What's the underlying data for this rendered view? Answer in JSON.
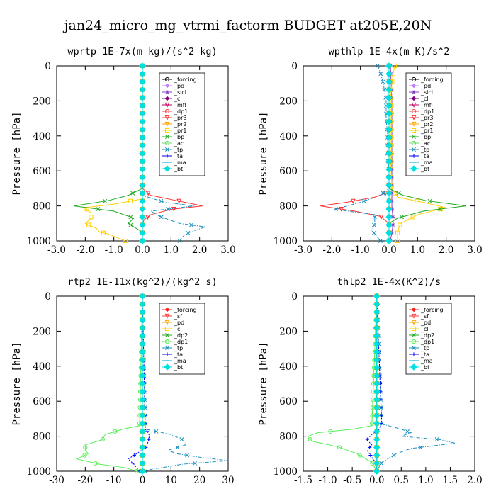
{
  "suptitle": "jan24_micro_mg_vtrmi_factorm  BUDGET at205E,20N",
  "chart_data": [
    {
      "type": "line",
      "title": "wprtp  1E-7x(m kg)/(s^2 kg)",
      "ylabel": "Pressure [hPa]",
      "xlim": [
        -3,
        3
      ],
      "ylim": [
        1000,
        0
      ],
      "xticks": [
        "-3.0",
        "-2.0",
        "-1.0",
        "0.0",
        "1.0",
        "2.0",
        "3.0"
      ],
      "yticks": [
        "0",
        "200",
        "400",
        "600",
        "800",
        "1000"
      ],
      "legend": "top-right",
      "series": [
        {
          "name": "_forcing",
          "color": "#000000",
          "marker": "circle",
          "pressure": [
            0,
            700,
            750,
            800,
            850,
            900,
            950,
            1000
          ],
          "values": [
            0,
            0,
            0,
            0,
            0,
            0,
            0,
            0
          ]
        },
        {
          "name": "_pd",
          "color": "#c080ff",
          "marker": "diamond",
          "pressure": [
            0,
            1000
          ],
          "values": [
            0,
            0
          ]
        },
        {
          "name": "_sicl",
          "color": "#8040c0",
          "marker": "star",
          "pressure": [
            0,
            1000
          ],
          "values": [
            0,
            0
          ]
        },
        {
          "name": "_cl",
          "color": "#800080",
          "marker": "diamond",
          "pressure": [
            0,
            1000
          ],
          "values": [
            0,
            0
          ]
        },
        {
          "name": "_mfl",
          "color": "#c00060",
          "marker": "triangle",
          "pressure": [
            0,
            1000
          ],
          "values": [
            0,
            0
          ]
        },
        {
          "name": "_dp1",
          "color": "#ff4040",
          "marker": "circle",
          "pressure": [
            0,
            1000
          ],
          "values": [
            0,
            0
          ]
        },
        {
          "name": "_pr3",
          "color": "#ff3030",
          "marker": "triangle",
          "pressure": [
            0,
            700,
            740,
            770,
            790,
            800,
            820,
            850,
            880,
            920,
            1000
          ],
          "values": [
            0,
            0,
            0.3,
            1.2,
            1.8,
            2.1,
            1.0,
            0.3,
            0.05,
            0,
            0
          ]
        },
        {
          "name": "_pr2",
          "color": "#ffa500",
          "marker": "triangle",
          "pressure": [
            0,
            1000
          ],
          "values": [
            0,
            0
          ]
        },
        {
          "name": "_pr1",
          "color": "#ffd000",
          "marker": "square",
          "pressure": [
            0,
            760,
            790,
            810,
            840,
            870,
            900,
            930,
            950,
            960,
            980,
            1000
          ],
          "values": [
            0,
            0,
            -1.0,
            -2.0,
            -1.8,
            -1.8,
            -2.0,
            -1.6,
            -1.5,
            -1.2,
            -0.9,
            -0.6
          ]
        },
        {
          "name": "_bp",
          "color": "#22aa22",
          "marker": "x",
          "pressure": [
            0,
            700,
            740,
            770,
            800,
            830,
            870,
            900,
            950,
            1000
          ],
          "values": [
            0,
            0,
            -0.5,
            -1.2,
            -2.4,
            -1.0,
            -0.3,
            -0.5,
            0,
            0
          ]
        },
        {
          "name": "_ac",
          "color": "#66dd66",
          "marker": "circle",
          "pressure": [
            0,
            1000
          ],
          "values": [
            0,
            0
          ]
        },
        {
          "name": "_tp",
          "color": "#1a8fc0",
          "marker": "x",
          "pressure": [
            0,
            740,
            780,
            800,
            830,
            860,
            900,
            920,
            960,
            1000
          ],
          "values": [
            0,
            0,
            0.8,
            1.8,
            0.3,
            0.6,
            1.3,
            2.2,
            1.5,
            1.3
          ]
        },
        {
          "name": "_ta",
          "color": "#0000ff",
          "marker": "plus",
          "pressure": [
            0,
            1000
          ],
          "values": [
            0,
            0
          ]
        },
        {
          "name": "_ma",
          "color": "#00aadd",
          "marker": "dash",
          "pressure": [
            0,
            1000
          ],
          "values": [
            0,
            0
          ]
        },
        {
          "name": "_bt",
          "color": "#00e0e0",
          "marker": "bigdiamond",
          "pressure": [
            0,
            1000
          ],
          "values": [
            0,
            0
          ]
        }
      ]
    },
    {
      "type": "line",
      "title": "wpthlp  1E-4x(m K)/s^2",
      "ylabel": "Pressure [hPa]",
      "xlim": [
        -3,
        3
      ],
      "ylim": [
        1000,
        0
      ],
      "xticks": [
        "-3.0",
        "-2.0",
        "-1.0",
        "0.0",
        "1.0",
        "2.0",
        "3.0"
      ],
      "yticks": [
        "0",
        "200",
        "400",
        "600",
        "800",
        "1000"
      ],
      "legend": "top-right",
      "series": [
        {
          "name": "_forcing",
          "color": "#000000",
          "marker": "circle",
          "pressure": [
            0,
            200,
            400,
            600,
            700,
            800,
            900,
            1000
          ],
          "values": [
            0,
            0,
            0,
            0,
            0,
            0,
            0,
            0
          ]
        },
        {
          "name": "_pd",
          "color": "#c080ff",
          "marker": "diamond",
          "pressure": [
            0,
            1000
          ],
          "values": [
            0,
            0
          ]
        },
        {
          "name": "_sicl",
          "color": "#8040c0",
          "marker": "star",
          "pressure": [
            0,
            200,
            700,
            800,
            900,
            950,
            1000
          ],
          "values": [
            0.05,
            0.1,
            0.1,
            0.1,
            0.15,
            0.1,
            0.05
          ]
        },
        {
          "name": "_cl",
          "color": "#800080",
          "marker": "diamond",
          "pressure": [
            0,
            1000
          ],
          "values": [
            0,
            0
          ]
        },
        {
          "name": "_mfl",
          "color": "#c00060",
          "marker": "triangle",
          "pressure": [
            0,
            1000
          ],
          "values": [
            0,
            0
          ]
        },
        {
          "name": "_dp1",
          "color": "#ff4040",
          "marker": "circle",
          "pressure": [
            0,
            1000
          ],
          "values": [
            0,
            0
          ]
        },
        {
          "name": "_pr3",
          "color": "#ff3030",
          "marker": "triangle",
          "pressure": [
            0,
            720,
            750,
            780,
            800,
            830,
            860,
            900,
            1000
          ],
          "values": [
            0,
            0,
            -0.5,
            -1.5,
            -2.4,
            -1.2,
            -0.3,
            0,
            0
          ]
        },
        {
          "name": "_pr2",
          "color": "#ffa500",
          "marker": "triangle",
          "pressure": [
            0,
            1000
          ],
          "values": [
            0,
            0
          ]
        },
        {
          "name": "_pr1",
          "color": "#ffd000",
          "marker": "square",
          "pressure": [
            0,
            40,
            100,
            200,
            300,
            500,
            700,
            750,
            780,
            810,
            850,
            900,
            950,
            1000
          ],
          "values": [
            0.2,
            0.15,
            0.1,
            0.05,
            0.05,
            0.05,
            0.1,
            0.3,
            1.2,
            2.0,
            1.0,
            0.4,
            0.3,
            0.3
          ]
        },
        {
          "name": "_bp",
          "color": "#22aa22",
          "marker": "x",
          "pressure": [
            0,
            700,
            740,
            770,
            800,
            830,
            870,
            900,
            1000
          ],
          "values": [
            0,
            0,
            0.5,
            1.3,
            2.7,
            1.2,
            0.3,
            0,
            0
          ]
        },
        {
          "name": "_ac",
          "color": "#66dd66",
          "marker": "circle",
          "pressure": [
            0,
            1000
          ],
          "values": [
            0,
            0
          ]
        },
        {
          "name": "_tp",
          "color": "#1a8fc0",
          "marker": "x",
          "pressure": [
            0,
            40,
            100,
            200,
            300,
            400,
            500,
            600,
            700,
            740,
            780,
            820,
            850,
            900,
            940,
            980,
            1000
          ],
          "values": [
            -0.4,
            -0.3,
            -0.2,
            -0.1,
            -0.1,
            -0.05,
            -0.05,
            0,
            0,
            -0.3,
            -1.0,
            -1.9,
            -0.5,
            -0.5,
            -0.6,
            -0.4,
            -0.3
          ]
        },
        {
          "name": "_ta",
          "color": "#0000ff",
          "marker": "plus",
          "pressure": [
            0,
            1000
          ],
          "values": [
            0,
            0
          ]
        },
        {
          "name": "_ma",
          "color": "#00aadd",
          "marker": "dash",
          "pressure": [
            0,
            1000
          ],
          "values": [
            0,
            0
          ]
        },
        {
          "name": "_bt",
          "color": "#00e0e0",
          "marker": "bigdiamond",
          "pressure": [
            0,
            1000
          ],
          "values": [
            0,
            0
          ]
        }
      ]
    },
    {
      "type": "line",
      "title": "rtp2  1E-11x(kg^2)/(kg^2 s)",
      "ylabel": "Pressure [hPa]",
      "xlim": [
        -30,
        30
      ],
      "ylim": [
        1000,
        0
      ],
      "xticks": [
        "-30",
        "-20",
        "-10",
        "0",
        "10",
        "20",
        "30"
      ],
      "yticks": [
        "0",
        "200",
        "400",
        "600",
        "800",
        "1000"
      ],
      "legend": "top-right",
      "series": [
        {
          "name": "_forcing",
          "color": "#ff2020",
          "marker": "diamond",
          "pressure": [
            0,
            200,
            400,
            600,
            800,
            1000
          ],
          "values": [
            0,
            0,
            0,
            0,
            0,
            0
          ]
        },
        {
          "name": "_sf",
          "color": "#ff4040",
          "marker": "triangle",
          "pressure": [
            0,
            1000
          ],
          "values": [
            0,
            0
          ]
        },
        {
          "name": "_pd",
          "color": "#ffa500",
          "marker": "triangle",
          "pressure": [
            0,
            1000
          ],
          "values": [
            0,
            0
          ]
        },
        {
          "name": "_cl",
          "color": "#ffd000",
          "marker": "square",
          "pressure": [
            0,
            1000
          ],
          "values": [
            0,
            0
          ]
        },
        {
          "name": "_dp2",
          "color": "#22aa22",
          "marker": "x",
          "pressure": [
            0,
            1000
          ],
          "values": [
            0,
            0
          ]
        },
        {
          "name": "_dp1",
          "color": "#55ee55",
          "marker": "circle",
          "pressure": [
            0,
            740,
            760,
            790,
            820,
            850,
            880,
            900,
            930,
            960,
            980,
            1000
          ],
          "values": [
            0,
            -1,
            -7,
            -13,
            -14,
            -20,
            -20,
            -19,
            -23,
            -15,
            -6,
            -2
          ]
        },
        {
          "name": "_tp",
          "color": "#1a8fc0",
          "marker": "x",
          "pressure": [
            0,
            760,
            790,
            820,
            850,
            880,
            900,
            920,
            940,
            960,
            990,
            1000
          ],
          "values": [
            0,
            1,
            10,
            14,
            15,
            9,
            12,
            20,
            30,
            14,
            3,
            1
          ]
        },
        {
          "name": "_ta",
          "color": "#0000ff",
          "marker": "plus",
          "pressure": [
            0,
            760,
            780,
            800,
            830,
            860,
            900,
            930,
            960,
            1000
          ],
          "values": [
            0,
            1,
            2,
            2.5,
            2,
            1.5,
            -2,
            -5,
            -3,
            -1
          ]
        },
        {
          "name": "_ma",
          "color": "#00aadd",
          "marker": "dash",
          "pressure": [
            0,
            1000
          ],
          "values": [
            0,
            0
          ]
        },
        {
          "name": "_bt",
          "color": "#00e0e0",
          "marker": "bigdiamond",
          "pressure": [
            0,
            1000
          ],
          "values": [
            0,
            0
          ]
        }
      ]
    },
    {
      "type": "line",
      "title": "thlp2  1E-4x(K^2)/s",
      "ylabel": "Pressure [hPa]",
      "xlim": [
        -1.5,
        2.0
      ],
      "ylim": [
        1000,
        0
      ],
      "xticks": [
        "-1.5",
        "-1.0",
        "-0.5",
        "0.0",
        "0.5",
        "1.0",
        "1.5",
        "2.0"
      ],
      "yticks": [
        "0",
        "200",
        "400",
        "600",
        "800",
        "1000"
      ],
      "legend": "top-right",
      "series": [
        {
          "name": "_forcing",
          "color": "#ff2020",
          "marker": "diamond",
          "pressure": [
            0,
            200,
            400,
            600,
            800,
            1000
          ],
          "values": [
            0,
            0,
            0,
            0,
            0,
            0
          ]
        },
        {
          "name": "_sf",
          "color": "#ff4040",
          "marker": "triangle",
          "pressure": [
            0,
            1000
          ],
          "values": [
            0,
            0
          ]
        },
        {
          "name": "_pd",
          "color": "#ffa500",
          "marker": "triangle",
          "pressure": [
            0,
            1000
          ],
          "values": [
            0,
            0
          ]
        },
        {
          "name": "_cl",
          "color": "#ffd000",
          "marker": "square",
          "pressure": [
            0,
            1000
          ],
          "values": [
            0,
            0
          ]
        },
        {
          "name": "_dp2",
          "color": "#22aa22",
          "marker": "x",
          "pressure": [
            0,
            1000
          ],
          "values": [
            0,
            0
          ]
        },
        {
          "name": "_dp1",
          "color": "#55ee55",
          "marker": "circle",
          "pressure": [
            0,
            740,
            760,
            780,
            800,
            810,
            830,
            860,
            900,
            950,
            1000
          ],
          "values": [
            0,
            -0.1,
            -0.5,
            -1.2,
            -1.4,
            -1.4,
            -1.3,
            -0.8,
            -0.4,
            -0.1,
            0
          ]
        },
        {
          "name": "_tp",
          "color": "#1a8fc0",
          "marker": "x",
          "pressure": [
            0,
            730,
            760,
            780,
            800,
            820,
            840,
            870,
            900,
            950,
            1000
          ],
          "values": [
            0,
            0.1,
            0.5,
            0.7,
            0.5,
            1.3,
            1.6,
            0.7,
            0.4,
            0.1,
            0
          ]
        },
        {
          "name": "_ta",
          "color": "#0000ff",
          "marker": "plus",
          "pressure": [
            0,
            720,
            760,
            790,
            820,
            850,
            880,
            920,
            960,
            1000
          ],
          "values": [
            0,
            0.1,
            0.05,
            -0.1,
            -0.2,
            -0.1,
            -0.2,
            -0.1,
            0,
            0
          ]
        },
        {
          "name": "_ma",
          "color": "#00aadd",
          "marker": "dash",
          "pressure": [
            0,
            1000
          ],
          "values": [
            0,
            0
          ]
        },
        {
          "name": "_bt",
          "color": "#00e0e0",
          "marker": "bigdiamond",
          "pressure": [
            0,
            1000
          ],
          "values": [
            0,
            0
          ]
        }
      ]
    }
  ]
}
